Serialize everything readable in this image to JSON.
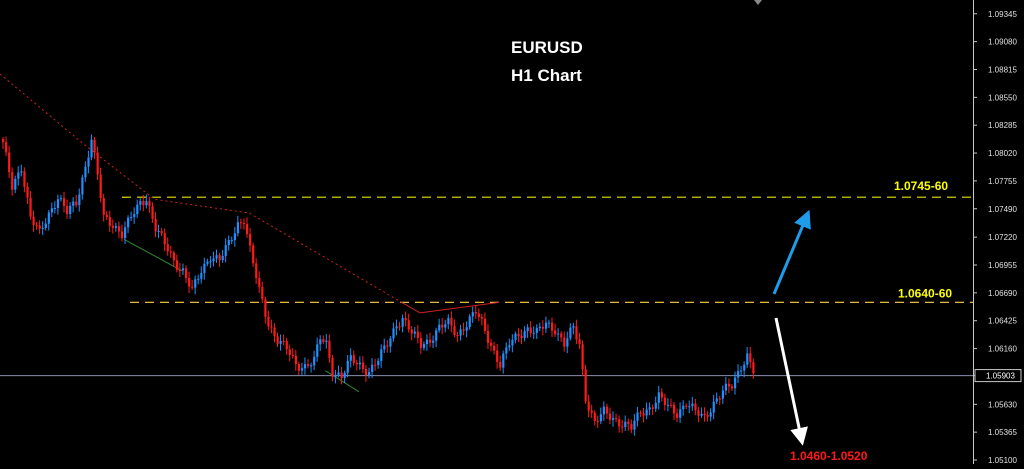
{
  "title": {
    "line1": "EURUSD",
    "line2": "H1 Chart"
  },
  "colors": {
    "background": "#000000",
    "bull_candle": "#1e90ff",
    "bear_candle": "#ff1a1a",
    "resistance_line": "#e6e600",
    "support_line": "#ffd24d",
    "trendline_down": "#cc2222",
    "trendline_green": "#2e8b2e",
    "arrow_up": "#1e9be9",
    "arrow_down": "#ffffff",
    "current_price_line": "#8a8fb0",
    "label_yellow": "#ffff00",
    "label_red": "#ff1a1a"
  },
  "chart_data": {
    "type": "candlestick",
    "symbol": "EURUSD",
    "timeframe": "H1",
    "ylim": [
      1.051,
      1.094
    ],
    "y_ticks": [
      "1.09345",
      "1.09080",
      "1.08815",
      "1.08550",
      "1.08285",
      "1.08020",
      "1.07755",
      "1.07490",
      "1.07220",
      "1.06955",
      "1.06690",
      "1.06425",
      "1.06160",
      "1.05903",
      "1.05630",
      "1.05365",
      "1.05100"
    ],
    "current_price": "1.05903",
    "levels": [
      {
        "name": "resistance-upper",
        "price": 1.076,
        "label": "1.0745-60"
      },
      {
        "name": "resistance-lower",
        "price": 1.066,
        "label": "1.0640-60"
      }
    ],
    "target_label": "1.0460-1.0520",
    "close_path": [
      [
        0,
        1.081
      ],
      [
        3,
        1.077
      ],
      [
        6,
        1.079
      ],
      [
        9,
        1.074
      ],
      [
        12,
        1.0725
      ],
      [
        15,
        1.0745
      ],
      [
        18,
        1.076
      ],
      [
        21,
        1.0745
      ],
      [
        24,
        1.0755
      ],
      [
        27,
        1.079
      ],
      [
        29,
        1.0815
      ],
      [
        31,
        1.078
      ],
      [
        33,
        1.074
      ],
      [
        36,
        1.0735
      ],
      [
        39,
        1.0725
      ],
      [
        42,
        1.074
      ],
      [
        45,
        1.0755
      ],
      [
        47,
        1.076
      ],
      [
        50,
        1.073
      ],
      [
        53,
        1.0715
      ],
      [
        56,
        1.07
      ],
      [
        59,
        1.069
      ],
      [
        62,
        1.067
      ],
      [
        65,
        1.069
      ],
      [
        68,
        1.0705
      ],
      [
        71,
        1.07
      ],
      [
        74,
        1.0715
      ],
      [
        77,
        1.0735
      ],
      [
        79,
        1.074
      ],
      [
        81,
        1.071
      ],
      [
        84,
        1.067
      ],
      [
        87,
        1.064
      ],
      [
        90,
        1.0625
      ],
      [
        93,
        1.0615
      ],
      [
        96,
        1.06
      ],
      [
        99,
        1.06
      ],
      [
        102,
        1.0605
      ],
      [
        104,
        1.0625
      ],
      [
        106,
        1.062
      ],
      [
        108,
        1.0595
      ],
      [
        111,
        1.059
      ],
      [
        114,
        1.0605
      ],
      [
        117,
        1.06
      ],
      [
        120,
        1.0595
      ],
      [
        123,
        1.0605
      ],
      [
        126,
        1.062
      ],
      [
        129,
        1.064
      ],
      [
        131,
        1.0645
      ],
      [
        134,
        1.063
      ],
      [
        137,
        1.062
      ],
      [
        140,
        1.0625
      ],
      [
        143,
        1.0635
      ],
      [
        146,
        1.064
      ],
      [
        149,
        1.063
      ],
      [
        152,
        1.064
      ],
      [
        155,
        1.065
      ],
      [
        157,
        1.064
      ],
      [
        160,
        1.062
      ],
      [
        163,
        1.06
      ],
      [
        166,
        1.062
      ],
      [
        169,
        1.063
      ],
      [
        172,
        1.0635
      ],
      [
        175,
        1.063
      ],
      [
        178,
        1.064
      ],
      [
        181,
        1.0635
      ],
      [
        184,
        1.062
      ],
      [
        187,
        1.0635
      ],
      [
        189,
        1.062
      ],
      [
        191,
        1.057
      ],
      [
        194,
        1.0545
      ],
      [
        197,
        1.0555
      ],
      [
        200,
        1.055
      ],
      [
        203,
        1.0545
      ],
      [
        206,
        1.054
      ],
      [
        209,
        1.0555
      ],
      [
        212,
        1.056
      ],
      [
        215,
        1.057
      ],
      [
        218,
        1.056
      ],
      [
        221,
        1.0555
      ],
      [
        224,
        1.0565
      ],
      [
        227,
        1.0555
      ],
      [
        230,
        1.055
      ],
      [
        233,
        1.0565
      ],
      [
        236,
        1.0575
      ],
      [
        239,
        1.058
      ],
      [
        242,
        1.06
      ],
      [
        244,
        1.061
      ],
      [
        246,
        1.0595
      ]
    ]
  }
}
